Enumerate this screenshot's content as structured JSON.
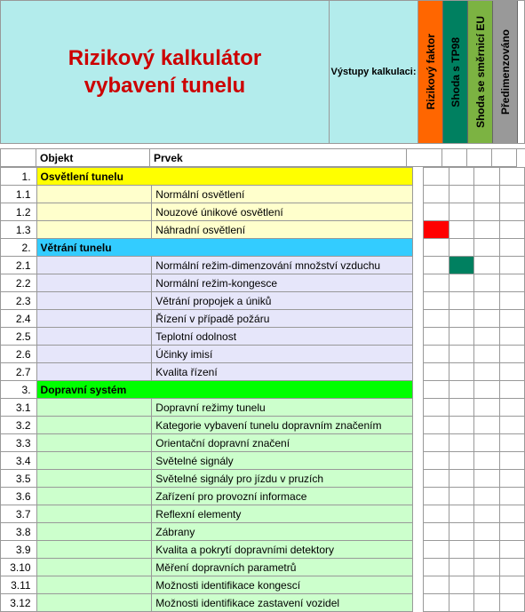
{
  "header": {
    "title": "Rizikový kalkulátor\nvybavení tunelu",
    "outputs_label": "Výstupy kalkulaci:",
    "vertical_cols": [
      {
        "label": "Rizikový faktor",
        "bg": "#ff6600"
      },
      {
        "label": "Shoda s TP98",
        "bg": "#008060"
      },
      {
        "label": "Shoda se směrnicí EU",
        "bg": "#7cb342"
      },
      {
        "label": "Předimenzováno",
        "bg": "#999999"
      }
    ]
  },
  "column_headers": {
    "objekt": "Objekt",
    "prvek": "Prvek"
  },
  "rows": [
    {
      "num": "1.",
      "objekt": "Osvětlení tunelu",
      "prvek": "",
      "section_bg": "#ffff00",
      "status": [
        "",
        "",
        "",
        ""
      ]
    },
    {
      "num": "1.1",
      "objekt": "",
      "prvek": "Normální osvětlení",
      "row_bg": "#ffffcc",
      "status": [
        "",
        "",
        "",
        ""
      ]
    },
    {
      "num": "1.2",
      "objekt": "",
      "prvek": "Nouzové únikové osvětlení",
      "row_bg": "#ffffcc",
      "status": [
        "",
        "",
        "",
        ""
      ]
    },
    {
      "num": "1.3",
      "objekt": "",
      "prvek": "Náhradní osvětlení",
      "row_bg": "#ffffcc",
      "status": [
        "#ff0000",
        "",
        "",
        ""
      ]
    },
    {
      "num": "2.",
      "objekt": "Větrání tunelu",
      "prvek": "",
      "section_bg": "#33ccff",
      "status": [
        "",
        "",
        "",
        ""
      ]
    },
    {
      "num": "2.1",
      "objekt": "",
      "prvek": "Normální režim-dimenzování množství vzduchu",
      "row_bg": "#e6e6fa",
      "status": [
        "",
        "#008060",
        "",
        ""
      ]
    },
    {
      "num": "2.2",
      "objekt": "",
      "prvek": "Normální režim-kongesce",
      "row_bg": "#e6e6fa",
      "status": [
        "",
        "",
        "",
        ""
      ]
    },
    {
      "num": "2.3",
      "objekt": "",
      "prvek": "Větrání propojek a úniků",
      "row_bg": "#e6e6fa",
      "status": [
        "",
        "",
        "",
        ""
      ]
    },
    {
      "num": "2.4",
      "objekt": "",
      "prvek": "Řízení v případě požáru",
      "row_bg": "#e6e6fa",
      "status": [
        "",
        "",
        "",
        ""
      ]
    },
    {
      "num": "2.5",
      "objekt": "",
      "prvek": "Teplotní odolnost",
      "row_bg": "#e6e6fa",
      "status": [
        "",
        "",
        "",
        ""
      ]
    },
    {
      "num": "2.6",
      "objekt": "",
      "prvek": "Účinky imisí",
      "row_bg": "#e6e6fa",
      "status": [
        "",
        "",
        "",
        ""
      ]
    },
    {
      "num": "2.7",
      "objekt": "",
      "prvek": "Kvalita řízení",
      "row_bg": "#e6e6fa",
      "status": [
        "",
        "",
        "",
        ""
      ]
    },
    {
      "num": "3.",
      "objekt": "Dopravní systém",
      "prvek": "",
      "section_bg": "#00ff00",
      "status": [
        "",
        "",
        "",
        ""
      ]
    },
    {
      "num": "3.1",
      "objekt": "",
      "prvek": "Dopravní režimy tunelu",
      "row_bg": "#ccffcc",
      "status": [
        "",
        "",
        "",
        ""
      ]
    },
    {
      "num": "3.2",
      "objekt": "",
      "prvek": "Kategorie vybavení tunelu dopravním značením",
      "row_bg": "#ccffcc",
      "status": [
        "",
        "",
        "",
        ""
      ]
    },
    {
      "num": "3.3",
      "objekt": "",
      "prvek": "Orientační dopravní značení",
      "row_bg": "#ccffcc",
      "status": [
        "",
        "",
        "",
        ""
      ]
    },
    {
      "num": "3.4",
      "objekt": "",
      "prvek": "Světelné signály",
      "row_bg": "#ccffcc",
      "status": [
        "",
        "",
        "",
        ""
      ]
    },
    {
      "num": "3.5",
      "objekt": "",
      "prvek": "Světelné signály pro jízdu v pruzích",
      "row_bg": "#ccffcc",
      "status": [
        "",
        "",
        "",
        ""
      ]
    },
    {
      "num": "3.6",
      "objekt": "",
      "prvek": "Zařízení pro provozní informace",
      "row_bg": "#ccffcc",
      "status": [
        "",
        "",
        "",
        ""
      ]
    },
    {
      "num": "3.7",
      "objekt": "",
      "prvek": "Reflexní elementy",
      "row_bg": "#ccffcc",
      "status": [
        "",
        "",
        "",
        ""
      ]
    },
    {
      "num": "3.8",
      "objekt": "",
      "prvek": "Zábrany",
      "row_bg": "#ccffcc",
      "status": [
        "",
        "",
        "",
        ""
      ]
    },
    {
      "num": "3.9",
      "objekt": "",
      "prvek": "Kvalita a pokrytí dopravními detektory",
      "row_bg": "#ccffcc",
      "status": [
        "",
        "",
        "",
        ""
      ]
    },
    {
      "num": "3.10",
      "objekt": "",
      "prvek": "Měření dopravních parametrů",
      "row_bg": "#ccffcc",
      "status": [
        "",
        "",
        "",
        ""
      ]
    },
    {
      "num": "3.11",
      "objekt": "",
      "prvek": "Možnosti identifikace kongescí",
      "row_bg": "#ccffcc",
      "status": [
        "",
        "",
        "",
        ""
      ]
    },
    {
      "num": "3.12",
      "objekt": "",
      "prvek": "Možnosti identifikace zastavení vozidel",
      "row_bg": "#ccffcc",
      "status": [
        "",
        "",
        "",
        ""
      ]
    }
  ]
}
